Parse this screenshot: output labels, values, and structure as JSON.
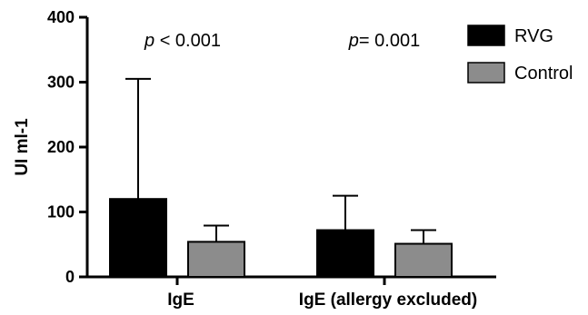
{
  "chart_data": {
    "type": "bar",
    "ylabel": "UI ml-1",
    "xlabel": "",
    "ylim": [
      0,
      400
    ],
    "yticks": [
      0,
      100,
      200,
      300,
      400
    ],
    "grid": false,
    "legend_position": "top-right",
    "categories": [
      "IgE",
      "IgE (allergy excluded)"
    ],
    "series": [
      {
        "name": "RVG",
        "color": "#000000",
        "values": [
          120,
          72
        ],
        "error_upper": [
          305,
          125
        ]
      },
      {
        "name": "Control",
        "color": "#8c8c8c",
        "values": [
          54,
          51
        ],
        "error_upper": [
          79,
          72
        ]
      }
    ],
    "annotations": [
      {
        "category": "IgE",
        "p_symbol": "p",
        "text": " < 0.001"
      },
      {
        "category": "IgE (allergy excluded)",
        "p_symbol": "p",
        "text": "= 0.001"
      }
    ]
  }
}
